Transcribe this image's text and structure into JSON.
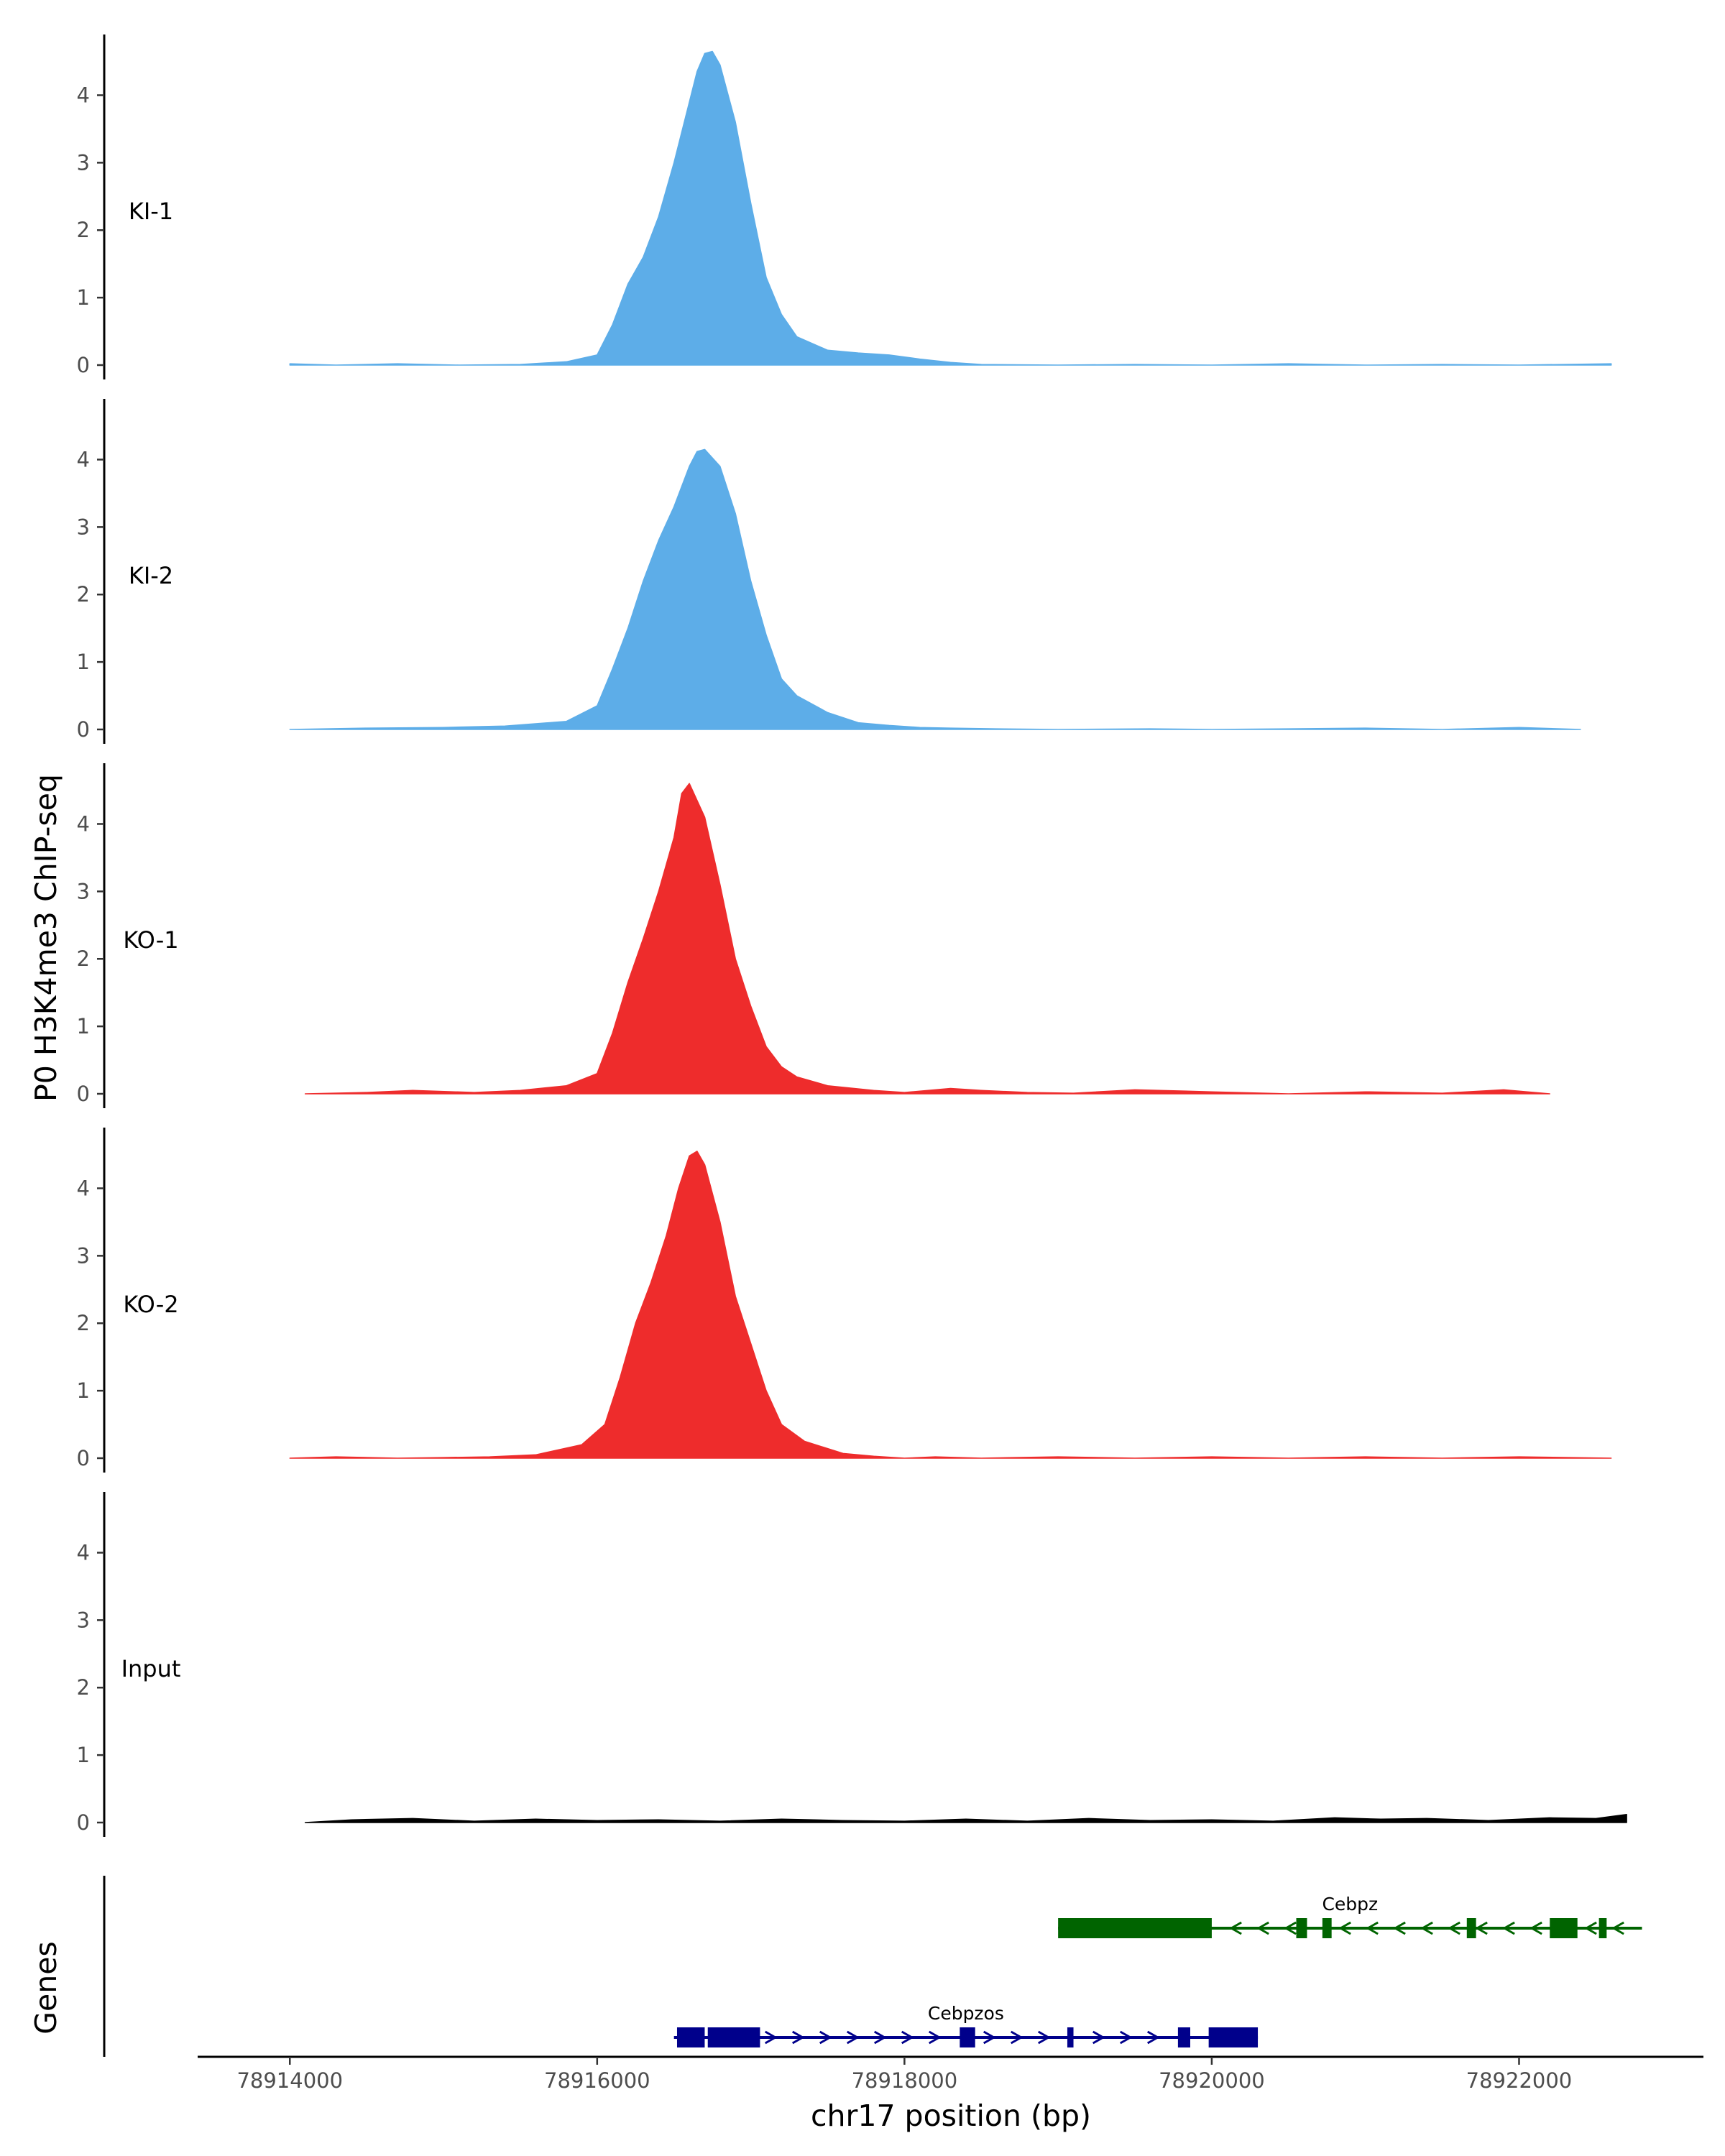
{
  "chart_data": {
    "type": "area",
    "ylabel": "P0 H3K4me3 ChIP-seq",
    "xlabel": "chr17 position (bp)",
    "genes_label": "Genes",
    "xlim": [
      78913400,
      78923200
    ],
    "ylim": [
      0,
      4.9
    ],
    "y_ticks": [
      "0",
      "1",
      "2",
      "3",
      "4"
    ],
    "x_ticks": [
      {
        "value": 78914000,
        "label": "78914000"
      },
      {
        "value": 78916000,
        "label": "78916000"
      },
      {
        "value": 78918000,
        "label": "78918000"
      },
      {
        "value": 78920000,
        "label": "78920000"
      },
      {
        "value": 78922000,
        "label": "78922000"
      }
    ],
    "grid": false,
    "tracks": [
      {
        "name": "KI-1",
        "color": "#5dade8",
        "x": [
          78914000,
          78914300,
          78914700,
          78915100,
          78915500,
          78915800,
          78916000,
          78916100,
          78916200,
          78916300,
          78916400,
          78916500,
          78916600,
          78916650,
          78916700,
          78916750,
          78916800,
          78916900,
          78917000,
          78917100,
          78917200,
          78917300,
          78917500,
          78917700,
          78917900,
          78918100,
          78918300,
          78918500,
          78919000,
          78919500,
          78920000,
          78920500,
          78921000,
          78921500,
          78922000,
          78922600
        ],
        "values": [
          0.02,
          0.0,
          0.02,
          0.0,
          0.01,
          0.05,
          0.15,
          0.6,
          1.2,
          1.6,
          2.2,
          3.0,
          3.9,
          4.35,
          4.62,
          4.65,
          4.45,
          3.6,
          2.4,
          1.3,
          0.75,
          0.42,
          0.22,
          0.18,
          0.15,
          0.09,
          0.04,
          0.01,
          0.0,
          0.01,
          0.0,
          0.02,
          0.0,
          0.01,
          0.0,
          0.02
        ]
      },
      {
        "name": "KI-2",
        "color": "#5dade8",
        "x": [
          78914000,
          78914500,
          78915000,
          78915400,
          78915800,
          78916000,
          78916100,
          78916200,
          78916300,
          78916400,
          78916500,
          78916600,
          78916650,
          78916700,
          78916800,
          78916900,
          78917000,
          78917100,
          78917200,
          78917300,
          78917500,
          78917700,
          78917900,
          78918100,
          78918300,
          78918600,
          78919000,
          78919600,
          78920000,
          78920500,
          78921000,
          78921500,
          78922000,
          78922400
        ],
        "values": [
          0.0,
          0.02,
          0.03,
          0.05,
          0.12,
          0.35,
          0.9,
          1.5,
          2.2,
          2.8,
          3.3,
          3.9,
          4.12,
          4.15,
          3.9,
          3.2,
          2.2,
          1.4,
          0.75,
          0.5,
          0.25,
          0.1,
          0.06,
          0.03,
          0.02,
          0.01,
          0.0,
          0.01,
          0.0,
          0.01,
          0.02,
          0.0,
          0.03,
          0.0
        ]
      },
      {
        "name": "KO-1",
        "color": "#ee2c2c",
        "x": [
          78914100,
          78914500,
          78914800,
          78915200,
          78915500,
          78915800,
          78916000,
          78916100,
          78916200,
          78916300,
          78916400,
          78916500,
          78916550,
          78916600,
          78916700,
          78916800,
          78916900,
          78917000,
          78917100,
          78917200,
          78917300,
          78917500,
          78917800,
          78918000,
          78918300,
          78918500,
          78918800,
          78919100,
          78919500,
          78920000,
          78920500,
          78921000,
          78921500,
          78921900,
          78922200
        ],
        "values": [
          0.0,
          0.02,
          0.05,
          0.02,
          0.05,
          0.12,
          0.3,
          0.9,
          1.65,
          2.3,
          3.0,
          3.8,
          4.45,
          4.6,
          4.1,
          3.1,
          2.0,
          1.3,
          0.7,
          0.4,
          0.25,
          0.12,
          0.05,
          0.02,
          0.08,
          0.05,
          0.02,
          0.01,
          0.06,
          0.03,
          0.0,
          0.03,
          0.01,
          0.06,
          0.0
        ]
      },
      {
        "name": "KO-2",
        "color": "#ee2c2c",
        "x": [
          78914000,
          78914300,
          78914700,
          78915000,
          78915300,
          78915600,
          78915900,
          78916050,
          78916150,
          78916250,
          78916350,
          78916450,
          78916530,
          78916600,
          78916650,
          78916700,
          78916800,
          78916900,
          78917000,
          78917100,
          78917200,
          78917350,
          78917600,
          78917800,
          78918000,
          78918200,
          78918500,
          78919000,
          78919500,
          78920000,
          78920500,
          78921000,
          78921500,
          78922000,
          78922600
        ],
        "values": [
          0.0,
          0.02,
          0.0,
          0.01,
          0.02,
          0.05,
          0.2,
          0.5,
          1.2,
          2.0,
          2.6,
          3.3,
          4.0,
          4.48,
          4.55,
          4.35,
          3.5,
          2.4,
          1.7,
          1.0,
          0.5,
          0.25,
          0.07,
          0.03,
          0.0,
          0.02,
          0.0,
          0.02,
          0.0,
          0.02,
          0.0,
          0.02,
          0.0,
          0.02,
          0.0
        ]
      },
      {
        "name": "Input",
        "color": "#000000",
        "x": [
          78914100,
          78914400,
          78914800,
          78915200,
          78915600,
          78916000,
          78916400,
          78916800,
          78917200,
          78917600,
          78918000,
          78918400,
          78918800,
          78919200,
          78919600,
          78920000,
          78920400,
          78920800,
          78921100,
          78921400,
          78921800,
          78922200,
          78922500,
          78922700
        ],
        "values": [
          0.0,
          0.04,
          0.06,
          0.02,
          0.05,
          0.03,
          0.04,
          0.02,
          0.05,
          0.03,
          0.02,
          0.05,
          0.02,
          0.06,
          0.03,
          0.04,
          0.02,
          0.07,
          0.05,
          0.06,
          0.03,
          0.07,
          0.06,
          0.12
        ]
      }
    ],
    "genes": [
      {
        "name": "Cebpz",
        "strand": "-",
        "color": "#006400",
        "start": 78919000,
        "end": 78922800,
        "exons": [
          [
            78919000,
            78920000
          ],
          [
            78920550,
            78920620
          ],
          [
            78920720,
            78920780
          ],
          [
            78921660,
            78921720
          ],
          [
            78922200,
            78922380
          ],
          [
            78922520,
            78922570
          ]
        ]
      },
      {
        "name": "Cebpzos",
        "strand": "+",
        "color": "#00008b",
        "start": 78916500,
        "end": 78920300,
        "exons": [
          [
            78916520,
            78916700
          ],
          [
            78916720,
            78917060
          ],
          [
            78918360,
            78918460
          ],
          [
            78919060,
            78919100
          ],
          [
            78919780,
            78919860
          ],
          [
            78919980,
            78920300
          ]
        ]
      }
    ]
  }
}
